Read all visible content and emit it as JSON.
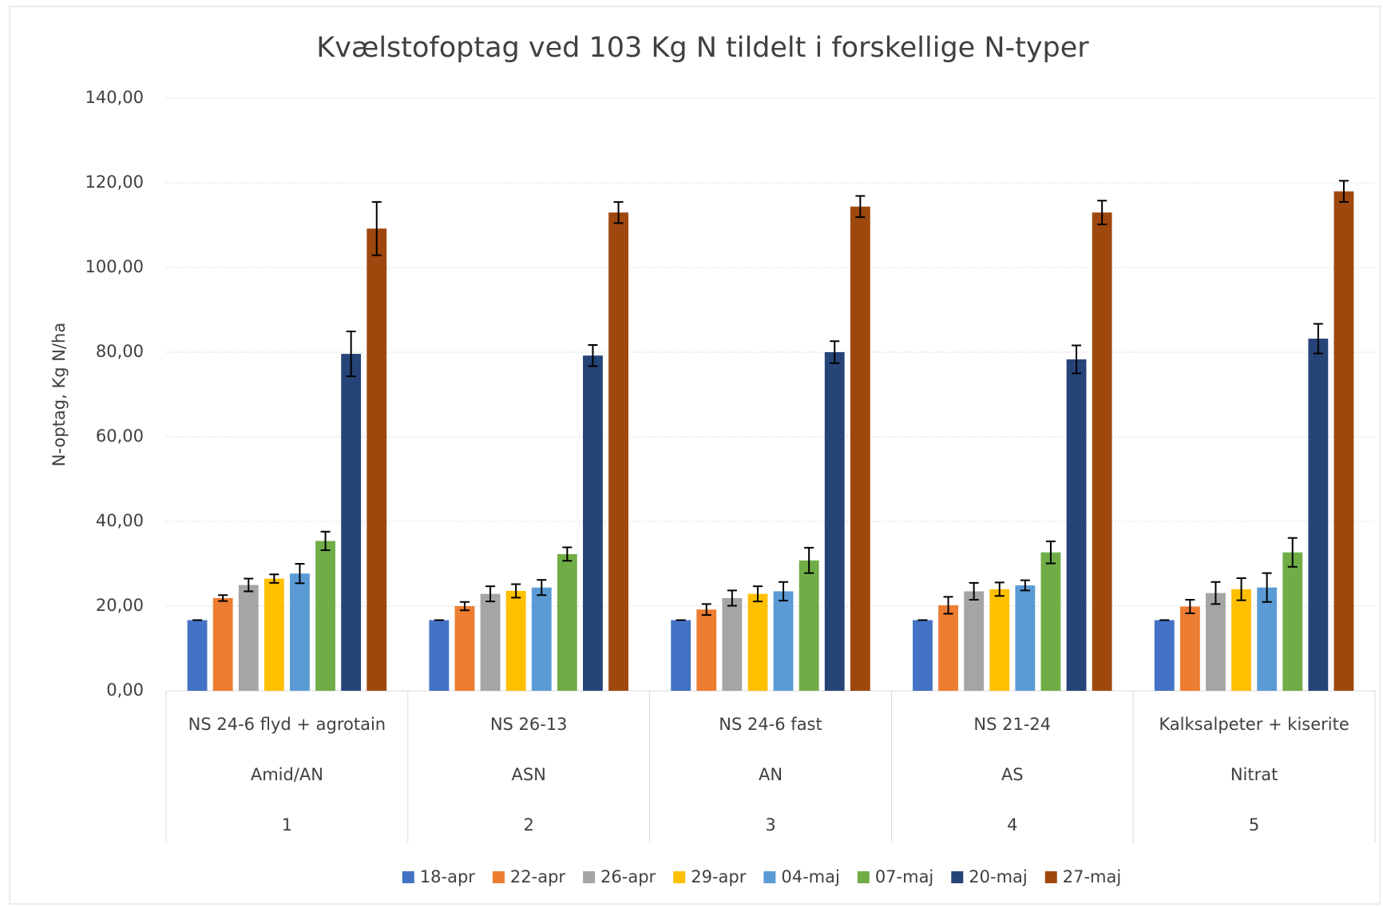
{
  "chart_data": {
    "type": "bar",
    "title": "Kvælstofoptag ved 103 Kg N tildelt i forskellige N-typer",
    "y_label": "N-optag, Kg N/ha",
    "categories": [
      "NS 24-6 flyd + agrotain",
      "NS 26-13",
      "NS 24-6 fast",
      "NS 21-24",
      "Kalksalpeter + kiserite"
    ],
    "category_groups": [
      "Amid/AN",
      "ASN",
      "AN",
      "AS",
      "Nitrat"
    ],
    "category_numbers": [
      "1",
      "2",
      "3",
      "4",
      "5"
    ],
    "ylim": [
      0,
      140
    ],
    "yticks": [
      {
        "value": 0,
        "label": "0,00"
      },
      {
        "value": 20,
        "label": "20,00"
      },
      {
        "value": 40,
        "label": "40,00"
      },
      {
        "value": 60,
        "label": "60,00"
      },
      {
        "value": 80,
        "label": "80,00"
      },
      {
        "value": 100,
        "label": "100,00"
      },
      {
        "value": 120,
        "label": "120,00"
      },
      {
        "value": 140,
        "label": "140,00"
      }
    ],
    "grid": true,
    "legend": "bottom",
    "series": [
      {
        "name": "18-apr",
        "color": "#4472c4",
        "values": [
          16.7,
          16.7,
          16.7,
          16.7,
          16.7
        ],
        "errors": [
          0,
          0,
          0,
          0,
          0
        ]
      },
      {
        "name": "22-apr",
        "color": "#ed7d31",
        "values": [
          21.9,
          20,
          19.2,
          20.2,
          19.9
        ],
        "errors": [
          0.7,
          1,
          1.3,
          2,
          1.6
        ]
      },
      {
        "name": "26-apr",
        "color": "#a5a5a5",
        "values": [
          25,
          22.9,
          21.9,
          23.5,
          23.1
        ],
        "errors": [
          1.5,
          1.8,
          1.8,
          2,
          2.6
        ]
      },
      {
        "name": "29-apr",
        "color": "#ffc000",
        "values": [
          26.5,
          23.6,
          22.9,
          24,
          24
        ],
        "errors": [
          1,
          1.6,
          1.8,
          1.6,
          2.6
        ]
      },
      {
        "name": "04-maj",
        "color": "#5b9bd5",
        "values": [
          27.7,
          24.4,
          23.5,
          24.9,
          24.4
        ],
        "errors": [
          2.3,
          1.8,
          2.2,
          1.2,
          3.4
        ]
      },
      {
        "name": "07-maj",
        "color": "#70ad47",
        "values": [
          35.4,
          32.3,
          30.8,
          32.7,
          32.7
        ],
        "errors": [
          2.2,
          1.6,
          3,
          2.6,
          3.4
        ]
      },
      {
        "name": "20-maj",
        "color": "#264478",
        "values": [
          79.6,
          79.2,
          80,
          78.3,
          83.2
        ],
        "errors": [
          5.3,
          2.5,
          2.6,
          3.3,
          3.5
        ]
      },
      {
        "name": "27-maj",
        "color": "#9e480e",
        "values": [
          109.2,
          113,
          114.4,
          113,
          118
        ],
        "errors": [
          6.3,
          2.5,
          2.5,
          2.8,
          2.5
        ]
      }
    ]
  }
}
